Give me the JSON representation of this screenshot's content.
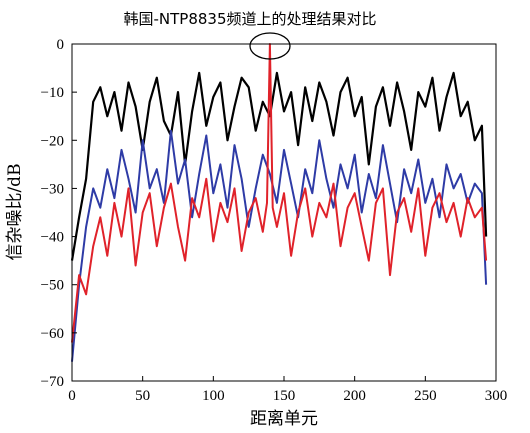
{
  "chart_data": {
    "type": "line",
    "title": "韩国-NTP8835频道上的处理结果对比",
    "xlabel": "距离单元",
    "ylabel": "信杂噪比/dB",
    "xlim": [
      0,
      300
    ],
    "ylim": [
      -70,
      0
    ],
    "xticks": [
      0,
      50,
      100,
      150,
      200,
      250,
      300
    ],
    "yticks": [
      0,
      -10,
      -20,
      -30,
      -40,
      -50,
      -60,
      -70
    ],
    "grid": false,
    "legend": "none",
    "annotation": "ellipse highlighting peak at range cell ~140",
    "series": [
      {
        "color": "#000000",
        "x": [
          0,
          5,
          10,
          15,
          20,
          25,
          30,
          35,
          40,
          45,
          50,
          55,
          60,
          65,
          70,
          75,
          80,
          85,
          90,
          95,
          100,
          105,
          110,
          115,
          120,
          125,
          130,
          135,
          140,
          145,
          150,
          155,
          160,
          165,
          170,
          175,
          180,
          185,
          190,
          195,
          200,
          205,
          210,
          215,
          220,
          225,
          230,
          235,
          240,
          245,
          250,
          255,
          260,
          265,
          270,
          275,
          280,
          285,
          290,
          293
        ],
        "y": [
          -45,
          -36,
          -28,
          -12,
          -9,
          -15,
          -10,
          -18,
          -8,
          -13,
          -22,
          -12,
          -7,
          -16,
          -19,
          -10,
          -25,
          -14,
          -6,
          -17,
          -11,
          -8,
          -20,
          -13,
          -7,
          -9,
          -18,
          -12,
          -15,
          -6,
          -14,
          -10,
          -21,
          -9,
          -16,
          -8,
          -12,
          -19,
          -10,
          -7,
          -15,
          -11,
          -25,
          -13,
          -9,
          -17,
          -8,
          -14,
          -22,
          -10,
          -13,
          -7,
          -18,
          -11,
          -6,
          -15,
          -12,
          -20,
          -17,
          -40
        ]
      },
      {
        "color": "#2e3ba6",
        "x": [
          0,
          5,
          10,
          15,
          20,
          25,
          30,
          35,
          40,
          45,
          50,
          55,
          60,
          65,
          70,
          75,
          80,
          85,
          90,
          95,
          100,
          105,
          110,
          115,
          120,
          125,
          130,
          135,
          140,
          145,
          150,
          155,
          160,
          165,
          170,
          175,
          180,
          185,
          190,
          195,
          200,
          205,
          210,
          215,
          220,
          225,
          230,
          235,
          240,
          245,
          250,
          255,
          260,
          265,
          270,
          275,
          280,
          285,
          290,
          293
        ],
        "y": [
          -66,
          -50,
          -38,
          -30,
          -34,
          -26,
          -32,
          -22,
          -28,
          -35,
          -20,
          -30,
          -26,
          -33,
          -18,
          -29,
          -24,
          -36,
          -27,
          -19,
          -31,
          -25,
          -34,
          -21,
          -28,
          -38,
          -30,
          -23,
          -27,
          -33,
          -22,
          -29,
          -36,
          -26,
          -31,
          -20,
          -28,
          -34,
          -25,
          -30,
          -23,
          -35,
          -27,
          -32,
          -21,
          -29,
          -37,
          -26,
          -31,
          -24,
          -33,
          -28,
          -36,
          -25,
          -30,
          -27,
          -33,
          -29,
          -31,
          -50
        ]
      },
      {
        "color": "#e0222a",
        "x": [
          0,
          5,
          10,
          15,
          20,
          25,
          30,
          35,
          40,
          45,
          50,
          55,
          60,
          65,
          70,
          75,
          80,
          85,
          90,
          95,
          100,
          105,
          110,
          115,
          120,
          125,
          130,
          135,
          138,
          140,
          142,
          145,
          150,
          155,
          160,
          165,
          170,
          175,
          180,
          185,
          190,
          195,
          200,
          205,
          210,
          215,
          220,
          225,
          230,
          235,
          240,
          245,
          250,
          255,
          260,
          265,
          270,
          275,
          280,
          285,
          290,
          293
        ],
        "y": [
          -62,
          -48,
          -52,
          -42,
          -36,
          -44,
          -33,
          -40,
          -30,
          -46,
          -35,
          -31,
          -42,
          -34,
          -29,
          -38,
          -45,
          -32,
          -36,
          -28,
          -41,
          -33,
          -37,
          -30,
          -43,
          -35,
          -32,
          -39,
          -33,
          0,
          -34,
          -38,
          -31,
          -44,
          -35,
          -30,
          -40,
          -33,
          -36,
          -29,
          -42,
          -34,
          -31,
          -38,
          -45,
          -33,
          -30,
          -48,
          -35,
          -32,
          -39,
          -30,
          -44,
          -34,
          -31,
          -37,
          -33,
          -40,
          -32,
          -36,
          -34,
          -45
        ]
      }
    ]
  }
}
